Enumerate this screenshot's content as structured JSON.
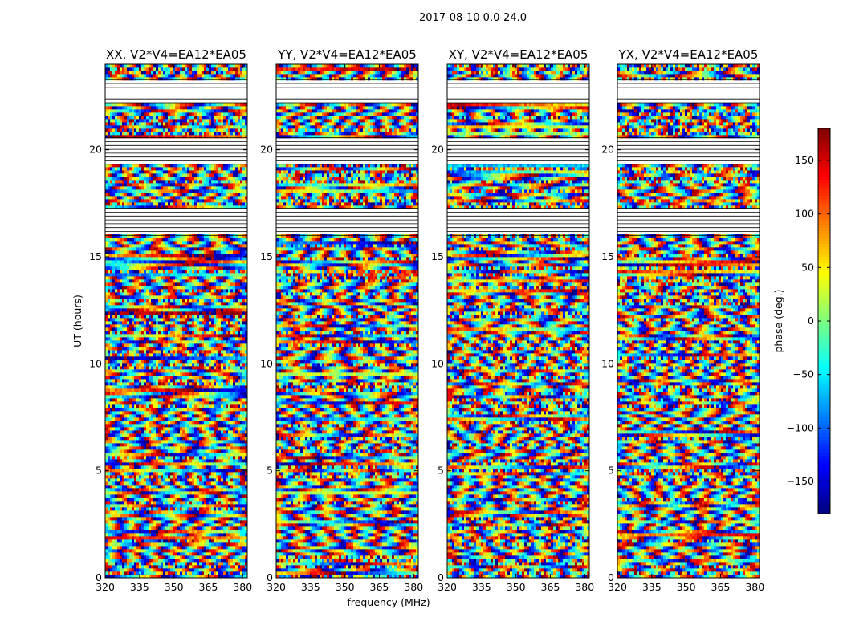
{
  "chart_data": {
    "type": "heatmap",
    "suptitle": "2017-08-10 0.0-24.0",
    "xlabel": "frequency (MHz)",
    "ylabel": "UT (hours)",
    "xlim": [
      320,
      382
    ],
    "ylim": [
      0,
      24
    ],
    "xticks": [
      "320",
      "335",
      "350",
      "365",
      "380"
    ],
    "yticks": [
      "0",
      "5",
      "10",
      "15",
      "20"
    ],
    "xtick_values": [
      320,
      335,
      350,
      365,
      380
    ],
    "ytick_values": [
      0,
      5,
      10,
      15,
      20
    ],
    "panels": [
      {
        "title": "XX, V2*V4=EA12*EA05",
        "value_offset": 55
      },
      {
        "title": "YY, V2*V4=EA12*EA05",
        "value_offset": 180
      },
      {
        "title": "XY, V2*V4=EA12*EA05",
        "value_offset": 0
      },
      {
        "title": "YX, V2*V4=EA12*EA05",
        "value_offset": 0
      }
    ],
    "flagged_hours": [
      [
        22.2,
        23.3
      ],
      [
        16.0,
        17.3
      ],
      [
        19.3,
        20.6
      ]
    ],
    "colorbar": {
      "label": "phase (deg.)",
      "range": [
        -180,
        180
      ],
      "ticks": [
        "150",
        "100",
        "50",
        "0",
        "−50",
        "−100",
        "−150"
      ],
      "tick_values": [
        150,
        100,
        50,
        0,
        -50,
        -100,
        -150
      ],
      "colormap": "jet"
    },
    "grid": false
  }
}
